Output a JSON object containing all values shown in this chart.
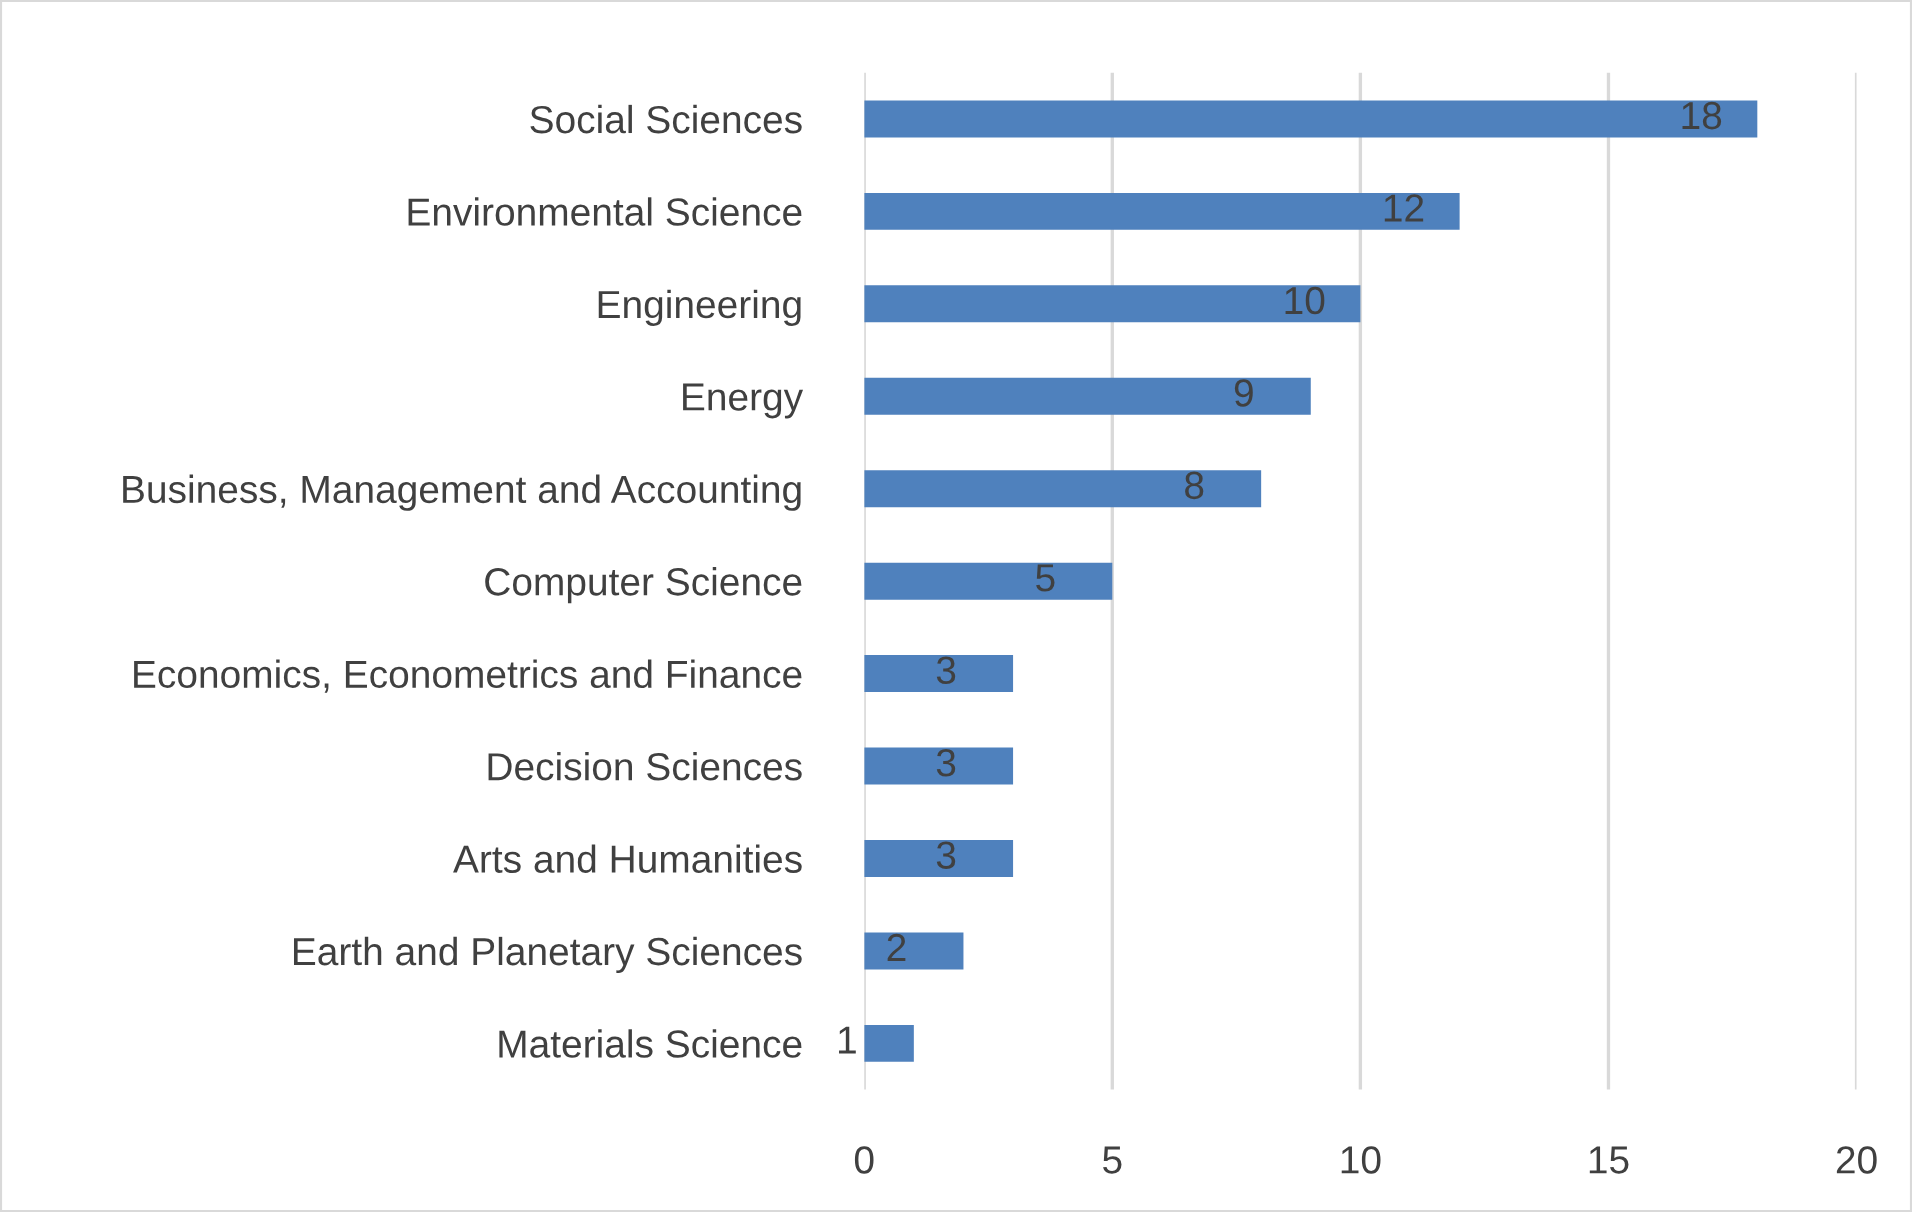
{
  "chart_data": {
    "type": "bar",
    "orientation": "horizontal",
    "categories": [
      "Social Sciences",
      "Environmental Science",
      "Engineering",
      "Energy",
      "Business, Management and Accounting",
      "Computer Science",
      "Economics, Econometrics and Finance",
      "Decision Sciences",
      "Arts and Humanities",
      "Earth and Planetary Sciences",
      "Materials Science"
    ],
    "values": [
      18,
      12,
      10,
      9,
      8,
      5,
      3,
      3,
      3,
      2,
      1
    ],
    "color": "#4f81bd",
    "xlim": [
      0,
      20
    ],
    "xticks": [
      0,
      5,
      10,
      15,
      20
    ],
    "grid": "x",
    "data_labels": true,
    "legend": false
  }
}
